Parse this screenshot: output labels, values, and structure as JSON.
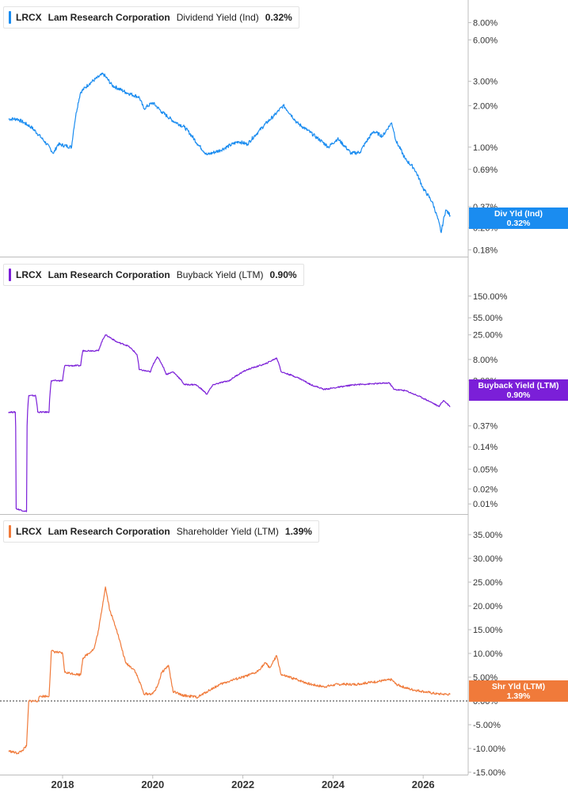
{
  "x_axis": {
    "ticks": [
      "2018",
      "2020",
      "2022",
      "2024",
      "2026"
    ]
  },
  "chart_data": [
    {
      "type": "line",
      "ticker": "LRCX",
      "company": "Lam Research Corporation",
      "metric": "Dividend Yield (Ind)",
      "last_value": "0.32%",
      "tag_label": "Div Yld (Ind)",
      "color": "#1a8cf0",
      "scale": "log",
      "ylim": [
        0.165,
        10.5
      ],
      "y_ticks": [
        "8.00%",
        "6.00%",
        "3.00%",
        "2.00%",
        "1.00%",
        "0.69%",
        "0.37%",
        "0.26%",
        "0.18%"
      ],
      "y_tick_values": [
        8,
        6,
        3,
        2,
        1,
        0.69,
        0.37,
        0.26,
        0.18
      ],
      "x": [
        2016.8,
        2017.0,
        2017.3,
        2017.6,
        2017.8,
        2017.9,
        2018.2,
        2018.4,
        2018.6,
        2018.9,
        2019.1,
        2019.4,
        2019.7,
        2019.8,
        2020.0,
        2020.2,
        2020.45,
        2020.7,
        2021.0,
        2021.2,
        2021.5,
        2021.9,
        2022.1,
        2022.35,
        2022.7,
        2022.9,
        2023.2,
        2023.4,
        2023.6,
        2023.9,
        2024.1,
        2024.4,
        2024.6,
        2024.9,
        2025.1,
        2025.3,
        2025.4,
        2025.6,
        2025.8,
        2026.0,
        2026.2,
        2026.4,
        2026.5,
        2026.6
      ],
      "values": [
        1.6,
        1.6,
        1.4,
        1.1,
        0.9,
        1.05,
        1.0,
        2.5,
        2.9,
        3.4,
        2.8,
        2.5,
        2.3,
        1.9,
        2.1,
        1.8,
        1.55,
        1.4,
        1.05,
        0.88,
        0.95,
        1.1,
        1.05,
        1.3,
        1.7,
        2.0,
        1.5,
        1.35,
        1.2,
        1.0,
        1.15,
        0.9,
        0.92,
        1.3,
        1.2,
        1.5,
        1.1,
        0.82,
        0.7,
        0.5,
        0.4,
        0.24,
        0.35,
        0.32
      ]
    },
    {
      "type": "line",
      "ticker": "LRCX",
      "company": "Lam Research Corporation",
      "metric": "Buyback Yield (LTM)",
      "last_value": "0.90%",
      "tag_label": "Buyback Yield (LTM)",
      "color": "#7b1fd8",
      "scale": "log",
      "ylim": [
        0.0065,
        500
      ],
      "y_ticks": [
        "150.00%",
        "55.00%",
        "25.00%",
        "8.00%",
        "3.00%",
        "0.37%",
        "0.14%",
        "0.05%",
        "0.02%",
        "0.01%"
      ],
      "y_tick_values": [
        150,
        55,
        25,
        8,
        3,
        0.37,
        0.14,
        0.05,
        0.02,
        0.01
      ],
      "x": [
        2016.8,
        2016.95,
        2016.97,
        2017.2,
        2017.25,
        2017.4,
        2017.45,
        2017.7,
        2017.75,
        2018.0,
        2018.05,
        2018.4,
        2018.45,
        2018.8,
        2018.95,
        2019.2,
        2019.45,
        2019.65,
        2019.7,
        2019.95,
        2020.1,
        2020.3,
        2020.45,
        2020.7,
        2020.95,
        2021.2,
        2021.35,
        2021.7,
        2022.1,
        2022.5,
        2022.75,
        2022.85,
        2023.2,
        2023.5,
        2023.8,
        2024.1,
        2024.5,
        2024.9,
        2025.25,
        2025.35,
        2025.6,
        2025.8,
        2026.1,
        2026.35,
        2026.45,
        2026.6
      ],
      "values": [
        0.7,
        0.7,
        0.008,
        0.007,
        1.5,
        1.5,
        0.7,
        0.7,
        3.0,
        3.0,
        6.0,
        6.0,
        12.0,
        12.0,
        25.0,
        18.0,
        15.0,
        10.0,
        5.0,
        4.5,
        9.0,
        4.0,
        4.5,
        2.5,
        2.5,
        1.6,
        2.5,
        3.0,
        5.0,
        6.5,
        8.5,
        4.5,
        3.5,
        2.5,
        2.0,
        2.2,
        2.5,
        2.6,
        2.7,
        2.0,
        1.9,
        1.6,
        1.2,
        0.9,
        1.2,
        0.9
      ]
    },
    {
      "type": "line",
      "ticker": "LRCX",
      "company": "Lam Research Corporation",
      "metric": "Shareholder Yield (LTM)",
      "last_value": "1.39%",
      "tag_label": "Shr Yld (LTM)",
      "color": "#f07a3a",
      "scale": "linear",
      "ylim": [
        -15,
        37.5
      ],
      "y_ticks": [
        "35.00%",
        "30.00%",
        "25.00%",
        "20.00%",
        "15.00%",
        "10.00%",
        "5.00%",
        "0.00%",
        "-5.00%",
        "-10.00%",
        "-15.00%"
      ],
      "y_tick_values": [
        35,
        30,
        25,
        20,
        15,
        10,
        5,
        0,
        -5,
        -10,
        -15
      ],
      "zero_line": true,
      "x": [
        2016.8,
        2017.0,
        2017.1,
        2017.2,
        2017.25,
        2017.45,
        2017.5,
        2017.7,
        2017.75,
        2018.0,
        2018.05,
        2018.4,
        2018.45,
        2018.7,
        2018.8,
        2018.95,
        2019.05,
        2019.2,
        2019.4,
        2019.6,
        2019.75,
        2019.8,
        2020.0,
        2020.1,
        2020.2,
        2020.35,
        2020.45,
        2020.65,
        2021.0,
        2021.3,
        2021.5,
        2021.8,
        2022.0,
        2022.3,
        2022.5,
        2022.6,
        2022.75,
        2022.85,
        2023.2,
        2023.5,
        2023.8,
        2024.1,
        2024.5,
        2024.9,
        2025.3,
        2025.4,
        2025.7,
        2026.0,
        2026.3,
        2026.6
      ],
      "values": [
        -10.5,
        -11,
        -10.5,
        -9.5,
        0,
        0,
        1.0,
        1.0,
        10.5,
        10.0,
        6.0,
        5.5,
        9.0,
        11.0,
        15.0,
        24.0,
        19.0,
        15.0,
        8.0,
        6.5,
        3.0,
        1.5,
        1.5,
        3.0,
        6.0,
        7.5,
        2.0,
        1.2,
        0.8,
        2.5,
        3.5,
        4.5,
        5.0,
        6.0,
        8.0,
        7.0,
        9.5,
        5.5,
        4.5,
        3.5,
        3.0,
        3.5,
        3.5,
        4.0,
        4.5,
        3.5,
        2.5,
        2.0,
        1.5,
        1.39
      ]
    }
  ]
}
